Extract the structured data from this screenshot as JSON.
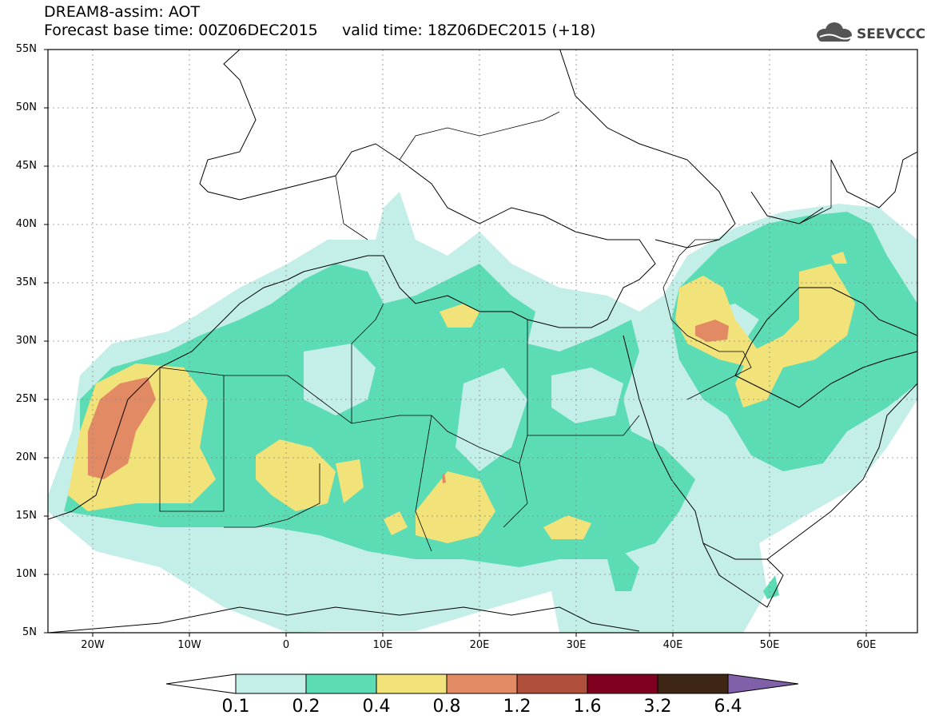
{
  "header": {
    "line1": "DREAM8-assim: AOT",
    "line2": "Forecast base time: 00Z06DEC2015     valid time: 18Z06DEC2015 (+18)",
    "logo_text": "SEEVCCC"
  },
  "map": {
    "lat_labels": [
      "55N",
      "50N",
      "45N",
      "40N",
      "35N",
      "30N",
      "25N",
      "20N",
      "15N",
      "10N",
      "5N"
    ],
    "lon_labels": [
      "20W",
      "10W",
      "0",
      "10E",
      "20E",
      "30E",
      "40E",
      "50E",
      "60E"
    ],
    "lon_range": [
      -25,
      65
    ],
    "lat_range": [
      5,
      55
    ]
  },
  "colorbar": {
    "levels": [
      "0.1",
      "0.2",
      "0.4",
      "0.8",
      "1.2",
      "1.6",
      "3.2",
      "6.4"
    ],
    "colors": [
      "#ffffff",
      "#c4eee8",
      "#5cdcb4",
      "#f2e27a",
      "#e28a64",
      "#b0503c",
      "#800020",
      "#3e2614",
      "#8060a8"
    ]
  }
}
